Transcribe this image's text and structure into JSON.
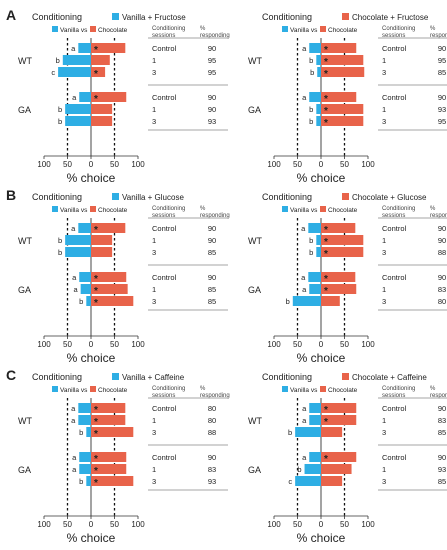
{
  "figure": {
    "colors": {
      "vanilla": "#2eaee4",
      "chocolate": "#e8634a",
      "axis": "#333333",
      "table_line": "#888888"
    },
    "header_word": "Conditioning",
    "legend_vanilla": "Vanilla",
    "legend_vs": "vs",
    "legend_chocolate": "Chocolate",
    "col_sessions": "Conditioning sessions",
    "col_responding": "% responding",
    "group_labels": [
      "WT",
      "GA"
    ],
    "session_labels": [
      "Control",
      "1",
      "3"
    ],
    "axis_label": "% choice",
    "axis_ticks": [
      "100",
      "50",
      "0",
      "50",
      "100"
    ],
    "star": "*"
  },
  "chart_data": [
    {
      "type": "bar",
      "panel": "A",
      "conditioning": "Vanilla + Fructose",
      "cs_side": "left",
      "xlabel": "% choice",
      "xlim": [
        -100,
        100
      ],
      "rows": [
        {
          "group": "WT",
          "session": "Control",
          "letter": "a",
          "vanilla": 27,
          "chocolate": 73,
          "star": true,
          "responding": "90"
        },
        {
          "group": "WT",
          "session": "1",
          "letter": "b",
          "vanilla": 60,
          "chocolate": 40,
          "star": false,
          "responding": "95"
        },
        {
          "group": "WT",
          "session": "3",
          "letter": "c",
          "vanilla": 70,
          "chocolate": 30,
          "star": true,
          "responding": "95"
        },
        {
          "group": "GA",
          "session": "Control",
          "letter": "a",
          "vanilla": 25,
          "chocolate": 75,
          "star": true,
          "responding": "90"
        },
        {
          "group": "GA",
          "session": "1",
          "letter": "b",
          "vanilla": 55,
          "chocolate": 45,
          "star": false,
          "responding": "90"
        },
        {
          "group": "GA",
          "session": "3",
          "letter": "b",
          "vanilla": 55,
          "chocolate": 45,
          "star": false,
          "responding": "93"
        }
      ]
    },
    {
      "type": "bar",
      "panel": "A",
      "conditioning": "Chocolate + Fructose",
      "cs_side": "right",
      "xlabel": "% choice",
      "xlim": [
        -100,
        100
      ],
      "rows": [
        {
          "group": "WT",
          "session": "Control",
          "letter": "a",
          "vanilla": 25,
          "chocolate": 75,
          "star": true,
          "responding": "90"
        },
        {
          "group": "WT",
          "session": "1",
          "letter": "b",
          "vanilla": 10,
          "chocolate": 90,
          "star": true,
          "responding": "95"
        },
        {
          "group": "WT",
          "session": "3",
          "letter": "b",
          "vanilla": 8,
          "chocolate": 92,
          "star": true,
          "responding": "85"
        },
        {
          "group": "GA",
          "session": "Control",
          "letter": "a",
          "vanilla": 25,
          "chocolate": 75,
          "star": true,
          "responding": "90"
        },
        {
          "group": "GA",
          "session": "1",
          "letter": "b",
          "vanilla": 10,
          "chocolate": 90,
          "star": true,
          "responding": "93"
        },
        {
          "group": "GA",
          "session": "3",
          "letter": "b",
          "vanilla": 10,
          "chocolate": 90,
          "star": true,
          "responding": "95"
        }
      ]
    },
    {
      "type": "bar",
      "panel": "B",
      "conditioning": "Vanilla + Glucose",
      "cs_side": "left",
      "xlabel": "% choice",
      "xlim": [
        -100,
        100
      ],
      "rows": [
        {
          "group": "WT",
          "session": "Control",
          "letter": "a",
          "vanilla": 27,
          "chocolate": 73,
          "star": true,
          "responding": "90"
        },
        {
          "group": "WT",
          "session": "1",
          "letter": "b",
          "vanilla": 55,
          "chocolate": 45,
          "star": false,
          "responding": "90"
        },
        {
          "group": "WT",
          "session": "3",
          "letter": "b",
          "vanilla": 55,
          "chocolate": 45,
          "star": false,
          "responding": "85"
        },
        {
          "group": "GA",
          "session": "Control",
          "letter": "a",
          "vanilla": 25,
          "chocolate": 75,
          "star": true,
          "responding": "90"
        },
        {
          "group": "GA",
          "session": "1",
          "letter": "a",
          "vanilla": 22,
          "chocolate": 78,
          "star": true,
          "responding": "85"
        },
        {
          "group": "GA",
          "session": "3",
          "letter": "b",
          "vanilla": 10,
          "chocolate": 90,
          "star": true,
          "responding": "85"
        }
      ]
    },
    {
      "type": "bar",
      "panel": "B",
      "conditioning": "Chocolate + Glucose",
      "cs_side": "right",
      "xlabel": "% choice",
      "xlim": [
        -100,
        100
      ],
      "rows": [
        {
          "group": "WT",
          "session": "Control",
          "letter": "a",
          "vanilla": 27,
          "chocolate": 73,
          "star": true,
          "responding": "90"
        },
        {
          "group": "WT",
          "session": "1",
          "letter": "b",
          "vanilla": 10,
          "chocolate": 90,
          "star": true,
          "responding": "90"
        },
        {
          "group": "WT",
          "session": "3",
          "letter": "b",
          "vanilla": 10,
          "chocolate": 90,
          "star": true,
          "responding": "88"
        },
        {
          "group": "GA",
          "session": "Control",
          "letter": "a",
          "vanilla": 27,
          "chocolate": 73,
          "star": true,
          "responding": "90"
        },
        {
          "group": "GA",
          "session": "1",
          "letter": "a",
          "vanilla": 25,
          "chocolate": 75,
          "star": true,
          "responding": "83"
        },
        {
          "group": "GA",
          "session": "3",
          "letter": "b",
          "vanilla": 60,
          "chocolate": 40,
          "star": false,
          "responding": "80"
        }
      ]
    },
    {
      "type": "bar",
      "panel": "C",
      "conditioning": "Vanilla + Caffeine",
      "cs_side": "left",
      "xlabel": "% choice",
      "xlim": [
        -100,
        100
      ],
      "rows": [
        {
          "group": "WT",
          "session": "Control",
          "letter": "a",
          "vanilla": 27,
          "chocolate": 73,
          "star": true,
          "responding": "80"
        },
        {
          "group": "WT",
          "session": "1",
          "letter": "a",
          "vanilla": 27,
          "chocolate": 73,
          "star": true,
          "responding": "80"
        },
        {
          "group": "WT",
          "session": "3",
          "letter": "b",
          "vanilla": 10,
          "chocolate": 90,
          "star": true,
          "responding": "88"
        },
        {
          "group": "GA",
          "session": "Control",
          "letter": "a",
          "vanilla": 25,
          "chocolate": 75,
          "star": true,
          "responding": "90"
        },
        {
          "group": "GA",
          "session": "1",
          "letter": "a",
          "vanilla": 25,
          "chocolate": 75,
          "star": true,
          "responding": "83"
        },
        {
          "group": "GA",
          "session": "3",
          "letter": "b",
          "vanilla": 10,
          "chocolate": 90,
          "star": true,
          "responding": "93"
        }
      ]
    },
    {
      "type": "bar",
      "panel": "C",
      "conditioning": "Chocolate + Caffeine",
      "cs_side": "right",
      "xlabel": "% choice",
      "xlim": [
        -100,
        100
      ],
      "rows": [
        {
          "group": "WT",
          "session": "Control",
          "letter": "a",
          "vanilla": 25,
          "chocolate": 75,
          "star": true,
          "responding": "90"
        },
        {
          "group": "WT",
          "session": "1",
          "letter": "a",
          "vanilla": 25,
          "chocolate": 75,
          "star": true,
          "responding": "83"
        },
        {
          "group": "WT",
          "session": "3",
          "letter": "b",
          "vanilla": 55,
          "chocolate": 45,
          "star": false,
          "responding": "85"
        },
        {
          "group": "GA",
          "session": "Control",
          "letter": "a",
          "vanilla": 25,
          "chocolate": 75,
          "star": true,
          "responding": "90"
        },
        {
          "group": "GA",
          "session": "1",
          "letter": "b",
          "vanilla": 35,
          "chocolate": 65,
          "star": false,
          "responding": "93"
        },
        {
          "group": "GA",
          "session": "3",
          "letter": "c",
          "vanilla": 55,
          "chocolate": 45,
          "star": false,
          "responding": "85"
        }
      ]
    }
  ]
}
